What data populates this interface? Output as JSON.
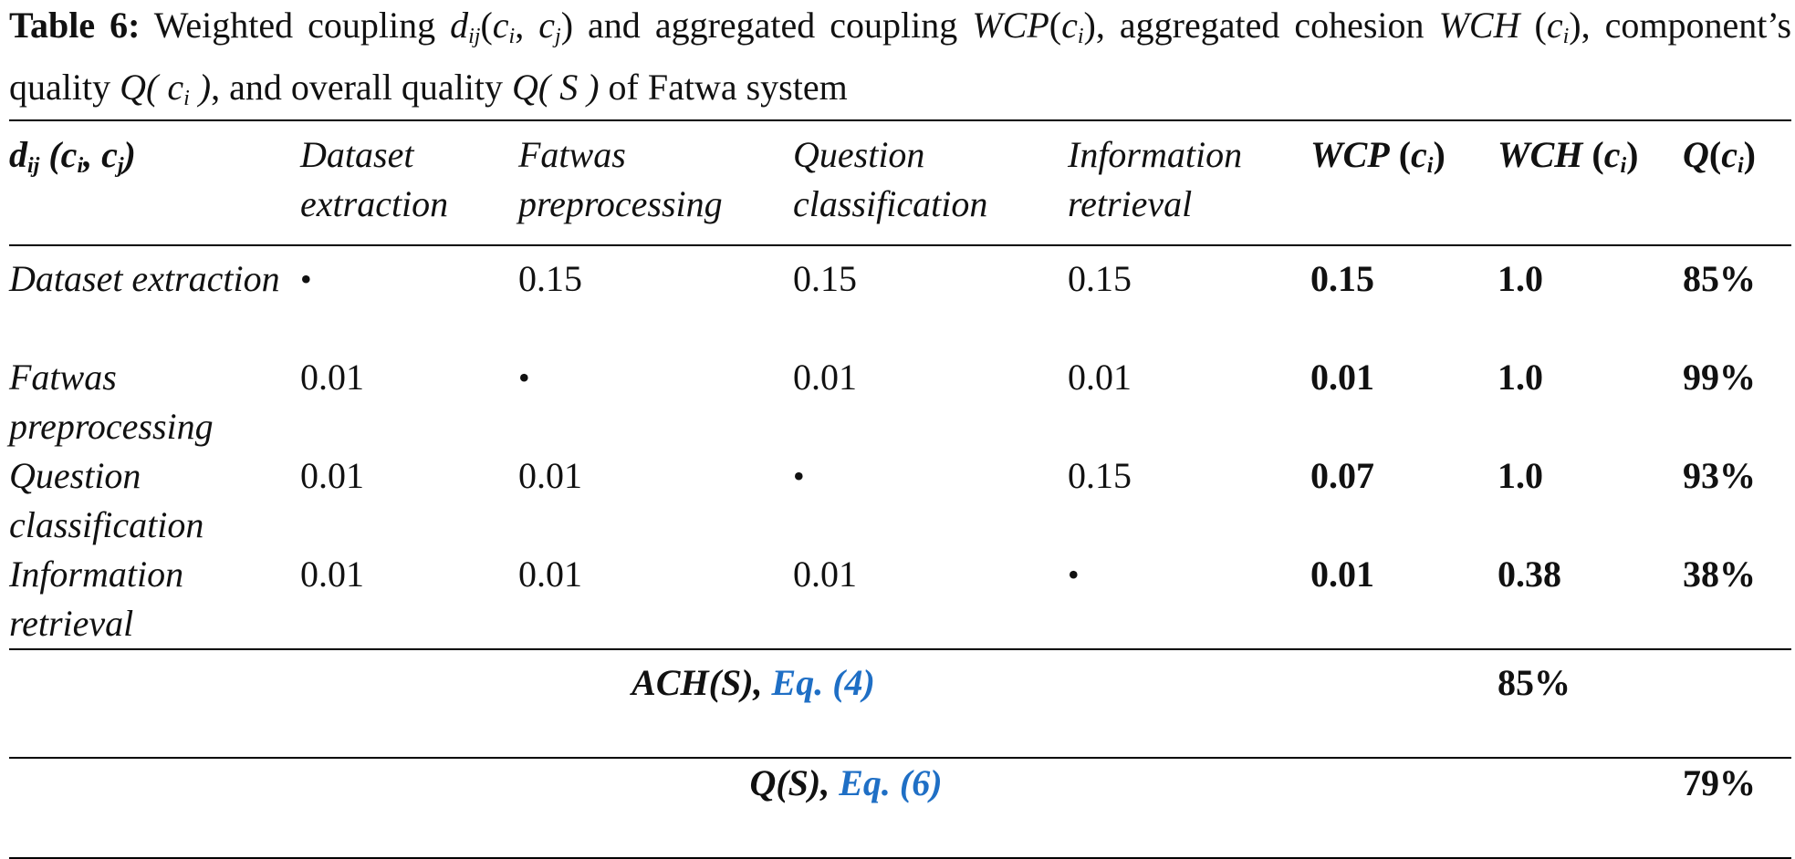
{
  "caption": {
    "label": "Table 6:",
    "parts": [
      "Weighted coupling ",
      "d",
      "ij",
      "(",
      "c",
      "i",
      ", ",
      "c",
      "j",
      ")",
      " and aggregated coupling ",
      "WCP",
      "(",
      "c",
      "i",
      ")",
      ", aggregated cohesion ",
      "WCH",
      " (",
      "c",
      "i",
      ")",
      ", component’s quality ",
      "Q( ",
      "c",
      "i",
      " )",
      ", and overall quality ",
      "Q( S )",
      " of Fatwa system"
    ]
  },
  "table": {
    "header": {
      "corner": [
        "d",
        "ij",
        " (",
        "c",
        "i",
        ", ",
        "c",
        "j",
        ")"
      ],
      "components": [
        "Dataset extraction",
        "Fatwas preprocessing",
        "Question classification",
        "Information retrieval"
      ],
      "wcp": [
        "WCP",
        " (",
        "c",
        "i",
        ")"
      ],
      "wch": [
        "WCH",
        " (",
        "c",
        "i",
        ")"
      ],
      "q": [
        "Q",
        "(",
        "c",
        "i",
        ")"
      ]
    },
    "rows": [
      {
        "label": "Dataset extraction",
        "cells": [
          "•",
          "0.15",
          "0.15",
          "0.15"
        ],
        "wcp": "0.15",
        "wch": "1.0",
        "q": "85%"
      },
      {
        "label": "Fatwas preprocessing",
        "cells": [
          "0.01",
          "•",
          "0.01",
          "0.01"
        ],
        "wcp": "0.01",
        "wch": "1.0",
        "q": "99%"
      },
      {
        "label": "Question classification",
        "cells": [
          "0.01",
          "0.01",
          "•",
          "0.15"
        ],
        "wcp": "0.07",
        "wch": "1.0",
        "q": "93%"
      },
      {
        "label": "Information retrieval",
        "cells": [
          "0.01",
          "0.01",
          "0.01",
          "•"
        ],
        "wcp": "0.01",
        "wch": "0.38",
        "q": "38%"
      }
    ],
    "ach": {
      "label": "ACH(S), ",
      "link": "Eq. (4)",
      "value": "85%"
    },
    "qs": {
      "label": "Q(S), ",
      "link": "Eq. (6)",
      "value": "79%"
    }
  }
}
